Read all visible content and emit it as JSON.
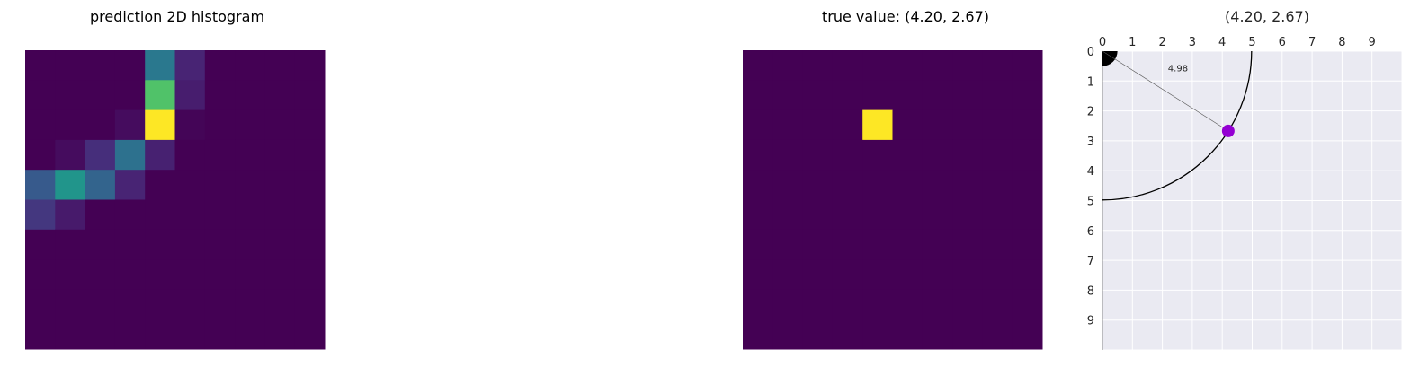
{
  "chart_data": [
    {
      "type": "heatmap",
      "title": "prediction 2D histogram",
      "rows": 10,
      "cols": 10,
      "values": [
        [
          0.0,
          0.0,
          0.0,
          0.0,
          0.4,
          0.1,
          0.0,
          0.0,
          0.0,
          0.0
        ],
        [
          0.0,
          0.0,
          0.0,
          0.0,
          0.72,
          0.08,
          0.0,
          0.0,
          0.0,
          0.0
        ],
        [
          0.0,
          0.0,
          0.0,
          0.03,
          1.0,
          0.01,
          0.0,
          0.0,
          0.0,
          0.0
        ],
        [
          0.0,
          0.03,
          0.13,
          0.37,
          0.09,
          0.0,
          0.0,
          0.0,
          0.0,
          0.0
        ],
        [
          0.28,
          0.52,
          0.32,
          0.1,
          0.0,
          0.0,
          0.0,
          0.0,
          0.0,
          0.0
        ],
        [
          0.16,
          0.07,
          0.0,
          0.0,
          0.0,
          0.0,
          0.0,
          0.0,
          0.0,
          0.0
        ],
        [
          0.0,
          0.0,
          0.0,
          0.0,
          0.0,
          0.0,
          0.0,
          0.0,
          0.0,
          0.0
        ],
        [
          0.0,
          0.0,
          0.0,
          0.0,
          0.0,
          0.0,
          0.0,
          0.0,
          0.0,
          0.0
        ],
        [
          0.0,
          0.0,
          0.0,
          0.0,
          0.0,
          0.0,
          0.0,
          0.0,
          0.0,
          0.0
        ],
        [
          0.0,
          0.0,
          0.0,
          0.0,
          0.0,
          0.0,
          0.0,
          0.0,
          0.0,
          0.0
        ]
      ],
      "colormap": "viridis",
      "axes_visible": false
    },
    {
      "type": "heatmap",
      "title": "true value: (4.20, 2.67)",
      "rows": 10,
      "cols": 10,
      "hot_cell": {
        "row": 2,
        "col": 4
      },
      "colormap": "viridis",
      "axes_visible": false
    },
    {
      "type": "scatter",
      "title": "(4.20, 2.67)",
      "x_ticks": [
        "0",
        "1",
        "2",
        "3",
        "4",
        "5",
        "6",
        "7",
        "8",
        "9"
      ],
      "y_ticks": [
        "0",
        "1",
        "2",
        "3",
        "4",
        "5",
        "6",
        "7",
        "8",
        "9"
      ],
      "xlim": [
        0,
        10
      ],
      "ylim": [
        10,
        0
      ],
      "x_axis_position": "top",
      "y_inverted": true,
      "grid": true,
      "point": {
        "x": 4.2,
        "y": 2.67,
        "color": "#9400d3"
      },
      "arc_radius": 4.98,
      "distance_label": "4.98",
      "origin_marker": "black quarter disc"
    }
  ],
  "colors": {
    "viridis_low": "#440154",
    "viridis_high": "#fde725",
    "plot_background": "#eaeaf2",
    "grid": "#ffffff",
    "point": "#9400d3"
  }
}
